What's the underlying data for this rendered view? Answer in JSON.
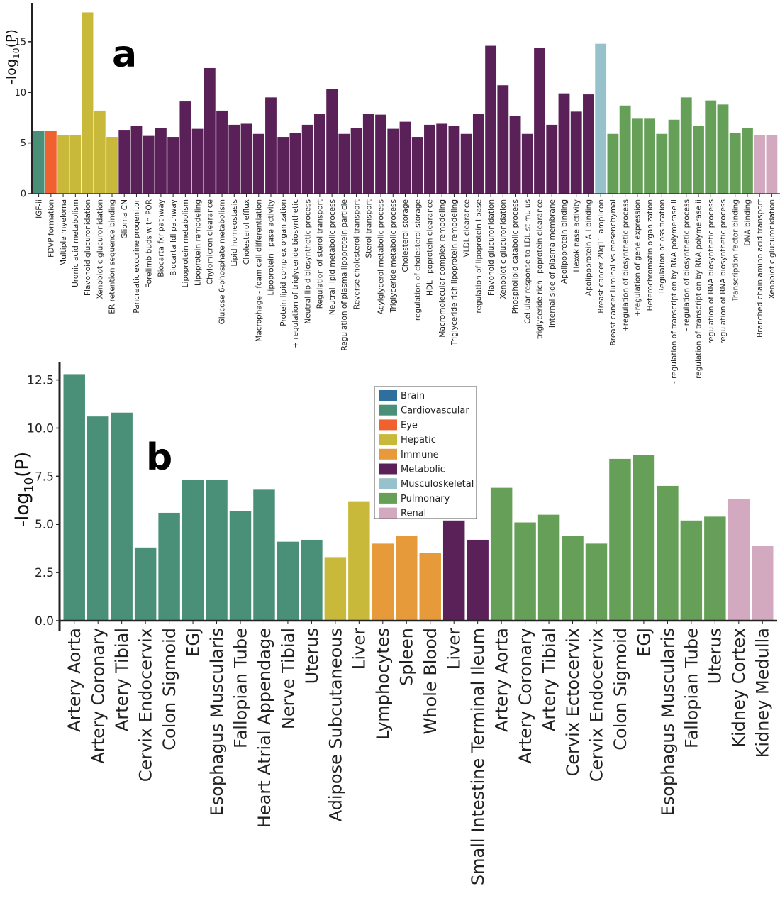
{
  "panel_labels": {
    "a": "a",
    "b": "b"
  },
  "colors": {
    "Brain": "#2e6f9e",
    "Cardiovascular": "#4a9079",
    "Eye": "#ef6230",
    "Hepatic": "#c8b93a",
    "Immune": "#e69a3a",
    "Metabolic": "#5a2159",
    "Musculoskeletal": "#97c1cb",
    "Pulmonary": "#66a058",
    "Renal": "#d3a9bf",
    "axis": "#222222"
  },
  "legend": {
    "entries": [
      "Brain",
      "Cardiovascular",
      "Eye",
      "Hepatic",
      "Immune",
      "Metabolic",
      "Musculoskeletal",
      "Pulmonary",
      "Renal"
    ]
  },
  "chart_data": [
    {
      "type": "bar",
      "panel": "a",
      "ylabel": "-log10(P)",
      "ylim": [
        0,
        18
      ],
      "yticks": [
        0,
        5,
        10,
        15
      ],
      "grid": false,
      "categories": [
        "IGF-ii",
        "FDVP formation",
        "Multiple myeloma",
        "Uronic acid metabolism",
        "Flavonoid glucuronidation",
        "Xenobiotic glucuronidation",
        "ER retention sequence binding",
        "Glioma CN",
        "Pancreatic exocrine progenitor",
        "Forelimb buds with POR",
        "Biocarta fxr pathway",
        "Biocarta ldl pathway",
        "Lipoprotein metabolism",
        "Lipoprotein remodeling",
        "Chylomicron clearance",
        "Glucose 6-phosphate metabolism",
        "Lipid homeostasis",
        "Cholesterol efflux",
        "Macrophage - foam cell differentiation",
        "Lipoprotein lipase activity",
        "Protein lipid complex organization",
        "+ regulation of triglyceride biosynthetic",
        "Neutral lipid biosynthetic process",
        "Regulation of sterol transport",
        "Neutral lipid metabolic process",
        "Regulation of plasma lipoprotein particle",
        "Reverse cholesterol transport",
        "Sterol transport",
        "Acylglycerol metabolic process",
        "Triglyceride metabolic process",
        "Cholesterol storage",
        "-regulation of cholesterol storage",
        "HDL lipoprotein clearance",
        "Macromolecular complex remodeling",
        "Triglyceride rich lipoprotein remodeling",
        "VLDL clearance",
        "-regulation of lipoprotein lipase",
        "Flavonoid glucuronidation",
        "Xenobiotic glucuronidation",
        "Phospholipid catabolic process",
        "Cellular response to LDL stimulus",
        "triglyceride rich lipoprotein clearance",
        "Internal side of plasma membrane",
        "Apolipoprotein binding",
        "Hexokinase activity",
        "Apolipoprotein A-I binding",
        "Breast cancer 20q11 amplicon",
        "Breast cancer luminal vs mesenchymal",
        "+regulation of biosynthetic process",
        "+regulation of gene expression",
        "Heterochromatin organization",
        "Regulation of ossification",
        "- regulation of transcription by RNA polymerase ii",
        "- regulation of biosynthetic process",
        "regulation of transcription by RNA polymerase ii",
        "regulation of RNA biosynthetic process",
        "regulation of RNA biosynthetic process",
        "Transcription factor binding",
        "DNA binding",
        "Branched chain amino acid transport",
        "Xenobiotic glucuronidation"
      ],
      "groups": [
        "Cardiovascular",
        "Eye",
        "Hepatic",
        "Hepatic",
        "Hepatic",
        "Hepatic",
        "Hepatic",
        "Metabolic",
        "Metabolic",
        "Metabolic",
        "Metabolic",
        "Metabolic",
        "Metabolic",
        "Metabolic",
        "Metabolic",
        "Metabolic",
        "Metabolic",
        "Metabolic",
        "Metabolic",
        "Metabolic",
        "Metabolic",
        "Metabolic",
        "Metabolic",
        "Metabolic",
        "Metabolic",
        "Metabolic",
        "Metabolic",
        "Metabolic",
        "Metabolic",
        "Metabolic",
        "Metabolic",
        "Metabolic",
        "Metabolic",
        "Metabolic",
        "Metabolic",
        "Metabolic",
        "Metabolic",
        "Metabolic",
        "Metabolic",
        "Metabolic",
        "Metabolic",
        "Metabolic",
        "Metabolic",
        "Metabolic",
        "Metabolic",
        "Metabolic",
        "Musculoskeletal",
        "Pulmonary",
        "Pulmonary",
        "Pulmonary",
        "Pulmonary",
        "Pulmonary",
        "Pulmonary",
        "Pulmonary",
        "Pulmonary",
        "Pulmonary",
        "Pulmonary",
        "Pulmonary",
        "Pulmonary",
        "Renal",
        "Renal"
      ],
      "values": [
        6.2,
        6.2,
        5.8,
        5.8,
        17.9,
        8.2,
        5.6,
        6.3,
        6.7,
        5.7,
        6.5,
        5.6,
        9.1,
        6.4,
        12.4,
        8.2,
        6.8,
        6.9,
        5.9,
        9.5,
        5.6,
        6.0,
        6.8,
        7.9,
        10.3,
        5.9,
        6.5,
        7.9,
        7.8,
        6.4,
        7.1,
        5.6,
        6.8,
        6.9,
        6.7,
        5.9,
        7.9,
        14.6,
        10.7,
        7.7,
        5.9,
        14.4,
        6.8,
        9.9,
        8.1,
        9.8,
        14.8,
        5.9,
        8.7,
        7.4,
        7.4,
        5.9,
        7.3,
        9.5,
        6.7,
        9.2,
        8.8,
        6.0,
        6.5,
        5.8,
        5.8
      ]
    },
    {
      "type": "bar",
      "panel": "b",
      "ylabel": "-log10(P)",
      "ylim": [
        0,
        13
      ],
      "yticks": [
        "0.0",
        "2.5",
        "5.0",
        "7.5",
        "10.0",
        "12.5"
      ],
      "grid": false,
      "legend_position": "top-center",
      "categories": [
        "Artery Aorta",
        "Artery Coronary",
        "Artery Tibial",
        "Cervix Endocervix",
        "Colon Sigmoid",
        "EGJ",
        "Esophagus Muscularis",
        "Fallopian Tube",
        "Heart Atrial Appendage",
        "Nerve Tibial",
        "Uterus",
        "Adipose Subcutaneous",
        "Liver",
        "Lymphocytes",
        "Spleen",
        "Whole Blood",
        "Liver",
        "Small Intestine Terminal Ileum",
        "Artery Aorta",
        "Artery Coronary",
        "Artery Tibial",
        "Cervix Ectocervix",
        "Cervix Endocervix",
        "Colon Sigmoid",
        "EGJ",
        "Esophagus Muscularis",
        "Fallopian Tube",
        "Uterus",
        "Kidney Cortex",
        "Kidney Medulla"
      ],
      "groups": [
        "Cardiovascular",
        "Cardiovascular",
        "Cardiovascular",
        "Cardiovascular",
        "Cardiovascular",
        "Cardiovascular",
        "Cardiovascular",
        "Cardiovascular",
        "Cardiovascular",
        "Cardiovascular",
        "Cardiovascular",
        "Hepatic",
        "Hepatic",
        "Immune",
        "Immune",
        "Immune",
        "Metabolic",
        "Metabolic",
        "Pulmonary",
        "Pulmonary",
        "Pulmonary",
        "Pulmonary",
        "Pulmonary",
        "Pulmonary",
        "Pulmonary",
        "Pulmonary",
        "Pulmonary",
        "Pulmonary",
        "Renal",
        "Renal"
      ],
      "values": [
        12.8,
        10.6,
        10.8,
        3.8,
        5.6,
        7.3,
        7.3,
        5.7,
        6.8,
        4.1,
        4.2,
        3.3,
        6.2,
        4.0,
        4.4,
        3.5,
        5.2,
        4.2,
        6.9,
        5.1,
        5.5,
        4.4,
        4.0,
        8.4,
        8.6,
        7.0,
        5.2,
        5.4,
        6.3,
        3.9
      ]
    }
  ]
}
